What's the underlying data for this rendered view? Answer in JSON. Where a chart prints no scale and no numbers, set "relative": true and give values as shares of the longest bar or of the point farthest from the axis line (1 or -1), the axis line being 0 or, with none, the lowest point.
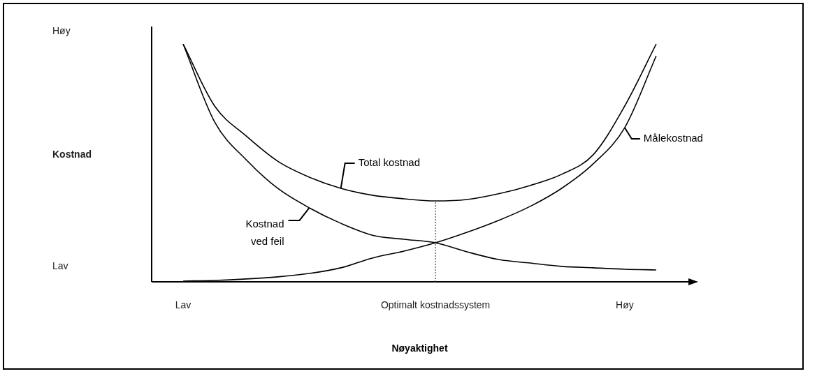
{
  "chart_data": {
    "type": "line",
    "relative": true,
    "xlabel": "Nøyaktighet",
    "tick_labels": "x",
    "annotations": [
      "Høy",
      "Kostnad",
      "Lav"
    ],
    "categories": [
      "Lav",
      null,
      null,
      null,
      null,
      null,
      null,
      null,
      "Optimalt kostnadssystem",
      null,
      null,
      null,
      null,
      null,
      "Høy",
      null
    ],
    "series": [
      {
        "name": "Total kostnad",
        "color": "#000000",
        "values": [
          1,
          0.739,
          0.613,
          0.507,
          0.44,
          0.393,
          0.364,
          0.349,
          0.34,
          0.346,
          0.37,
          0.405,
          0.452,
          0.534,
          0.739,
          1
        ]
      },
      {
        "name": "Kostnad ved feil",
        "color": "#000000",
        "values": [
          1,
          0.672,
          0.513,
          0.393,
          0.311,
          0.246,
          0.196,
          0.179,
          0.164,
          0.126,
          0.094,
          0.079,
          0.065,
          0.059,
          0.053,
          0.05
        ]
      },
      {
        "name": "Målekostnad",
        "color": "#000000",
        "values": [
          0.003,
          0.006,
          0.012,
          0.021,
          0.035,
          0.059,
          0.1,
          0.129,
          0.164,
          0.208,
          0.258,
          0.317,
          0.393,
          0.496,
          0.648,
          0.95
        ]
      }
    ],
    "ref_lines": [
      {
        "axis": "x",
        "value": "Optimalt kostnadssystem",
        "line_style": "dotted"
      }
    ]
  }
}
